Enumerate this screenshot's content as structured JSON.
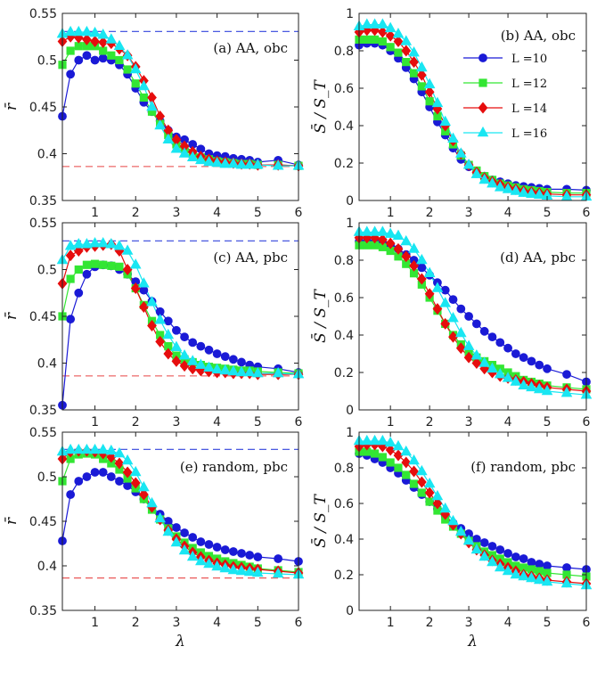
{
  "legend": {
    "entries": [
      {
        "label": "L =10",
        "color": "#1a1ad6",
        "marker": "circle"
      },
      {
        "label": "L =12",
        "color": "#33e633",
        "marker": "square"
      },
      {
        "label": "L =14",
        "color": "#e60d0d",
        "marker": "diamond"
      },
      {
        "label": "L =16",
        "color": "#19e6f2",
        "marker": "triangle"
      }
    ]
  },
  "chart_data": [
    {
      "type": "line",
      "panel_label": "(a) AA, obc",
      "xlabel": "",
      "ylabel": "r̄",
      "xlim": [
        0.2,
        6
      ],
      "ylim": [
        0.35,
        0.55
      ],
      "xticks": [
        "1",
        "2",
        "3",
        "4",
        "5",
        "6"
      ],
      "yticks": [
        "0.35",
        "0.4",
        "0.45",
        "0.5",
        "0.55"
      ],
      "reference_lines": [
        {
          "y": 0.5307,
          "color": "#3344dd"
        },
        {
          "y": 0.3863,
          "color": "#e84444"
        }
      ],
      "x": [
        0.2,
        0.4,
        0.6,
        0.8,
        1.0,
        1.2,
        1.4,
        1.6,
        1.8,
        2.0,
        2.2,
        2.4,
        2.6,
        2.8,
        3.0,
        3.2,
        3.4,
        3.6,
        3.8,
        4.0,
        4.2,
        4.4,
        4.6,
        4.8,
        5.0,
        5.5,
        6.0
      ],
      "series": [
        {
          "name": "L =10",
          "values": [
            0.44,
            0.485,
            0.5,
            0.505,
            0.5,
            0.502,
            0.5,
            0.495,
            0.485,
            0.47,
            0.455,
            0.445,
            0.435,
            0.425,
            0.418,
            0.415,
            0.41,
            0.405,
            0.4,
            0.398,
            0.397,
            0.395,
            0.394,
            0.393,
            0.391,
            0.393,
            0.388
          ]
        },
        {
          "name": "L =12",
          "values": [
            0.495,
            0.51,
            0.515,
            0.515,
            0.515,
            0.51,
            0.505,
            0.5,
            0.49,
            0.475,
            0.46,
            0.445,
            0.432,
            0.42,
            0.41,
            0.405,
            0.4,
            0.396,
            0.394,
            0.392,
            0.391,
            0.39,
            0.389,
            0.389,
            0.388,
            0.388,
            0.387
          ]
        },
        {
          "name": "L =14",
          "values": [
            0.52,
            0.525,
            0.524,
            0.522,
            0.52,
            0.519,
            0.518,
            0.512,
            0.505,
            0.493,
            0.478,
            0.46,
            0.44,
            0.425,
            0.415,
            0.408,
            0.402,
            0.397,
            0.394,
            0.392,
            0.391,
            0.39,
            0.389,
            0.389,
            0.388,
            0.388,
            0.387
          ]
        },
        {
          "name": "L =16",
          "values": [
            0.528,
            0.53,
            0.53,
            0.53,
            0.529,
            0.527,
            0.522,
            0.515,
            0.505,
            0.49,
            0.472,
            0.45,
            0.43,
            0.415,
            0.405,
            0.4,
            0.396,
            0.393,
            0.391,
            0.39,
            0.389,
            0.389,
            0.388,
            0.388,
            0.388,
            0.387,
            0.387
          ]
        }
      ]
    },
    {
      "type": "line",
      "panel_label": "(b) AA, obc",
      "xlabel": "",
      "ylabel": "S̄ / S_T",
      "xlim": [
        0.2,
        6
      ],
      "ylim": [
        0,
        1
      ],
      "xticks": [
        "1",
        "2",
        "3",
        "4",
        "5",
        "6"
      ],
      "yticks": [
        "0",
        "0.2",
        "0.4",
        "0.6",
        "0.8",
        "1"
      ],
      "legend_position": "top-right",
      "x": [
        0.2,
        0.4,
        0.6,
        0.8,
        1.0,
        1.2,
        1.4,
        1.6,
        1.8,
        2.0,
        2.2,
        2.4,
        2.6,
        2.8,
        3.0,
        3.2,
        3.4,
        3.6,
        3.8,
        4.0,
        4.2,
        4.4,
        4.6,
        4.8,
        5.0,
        5.5,
        6.0
      ],
      "series": [
        {
          "name": "L =10",
          "values": [
            0.83,
            0.84,
            0.84,
            0.83,
            0.8,
            0.76,
            0.71,
            0.65,
            0.58,
            0.5,
            0.42,
            0.35,
            0.28,
            0.22,
            0.18,
            0.15,
            0.13,
            0.11,
            0.1,
            0.09,
            0.08,
            0.075,
            0.07,
            0.065,
            0.06,
            0.06,
            0.055
          ]
        },
        {
          "name": "L =12",
          "values": [
            0.86,
            0.86,
            0.86,
            0.85,
            0.82,
            0.79,
            0.74,
            0.68,
            0.61,
            0.53,
            0.45,
            0.37,
            0.3,
            0.24,
            0.19,
            0.16,
            0.13,
            0.11,
            0.09,
            0.08,
            0.07,
            0.06,
            0.055,
            0.05,
            0.045,
            0.04,
            0.04
          ]
        },
        {
          "name": "L =14",
          "values": [
            0.9,
            0.91,
            0.91,
            0.9,
            0.88,
            0.85,
            0.8,
            0.74,
            0.67,
            0.58,
            0.49,
            0.4,
            0.32,
            0.25,
            0.19,
            0.15,
            0.12,
            0.1,
            0.085,
            0.07,
            0.06,
            0.05,
            0.045,
            0.04,
            0.035,
            0.03,
            0.03
          ]
        },
        {
          "name": "L =16",
          "values": [
            0.93,
            0.94,
            0.94,
            0.94,
            0.92,
            0.89,
            0.85,
            0.79,
            0.71,
            0.62,
            0.52,
            0.42,
            0.33,
            0.25,
            0.19,
            0.14,
            0.11,
            0.09,
            0.07,
            0.06,
            0.05,
            0.04,
            0.035,
            0.03,
            0.025,
            0.02,
            0.02
          ]
        }
      ]
    },
    {
      "type": "line",
      "panel_label": "(c) AA, pbc",
      "xlabel": "",
      "ylabel": "r̄",
      "xlim": [
        0.2,
        6
      ],
      "ylim": [
        0.35,
        0.55
      ],
      "xticks": [
        "1",
        "2",
        "3",
        "4",
        "5",
        "6"
      ],
      "yticks": [
        "0.35",
        "0.4",
        "0.45",
        "0.5",
        "0.55"
      ],
      "reference_lines": [
        {
          "y": 0.5307,
          "color": "#3344dd"
        },
        {
          "y": 0.3863,
          "color": "#e84444"
        }
      ],
      "x": [
        0.2,
        0.4,
        0.6,
        0.8,
        1.0,
        1.2,
        1.4,
        1.6,
        1.8,
        2.0,
        2.2,
        2.4,
        2.6,
        2.8,
        3.0,
        3.2,
        3.4,
        3.6,
        3.8,
        4.0,
        4.2,
        4.4,
        4.6,
        4.8,
        5.0,
        5.5,
        6.0
      ],
      "series": [
        {
          "name": "L =10",
          "values": [
            0.355,
            0.447,
            0.475,
            0.495,
            0.503,
            0.505,
            0.504,
            0.5,
            0.495,
            0.487,
            0.478,
            0.466,
            0.455,
            0.445,
            0.435,
            0.428,
            0.422,
            0.418,
            0.414,
            0.41,
            0.407,
            0.404,
            0.401,
            0.398,
            0.396,
            0.394,
            0.39
          ]
        },
        {
          "name": "L =12",
          "values": [
            0.45,
            0.49,
            0.5,
            0.505,
            0.506,
            0.505,
            0.504,
            0.503,
            0.495,
            0.48,
            0.462,
            0.445,
            0.43,
            0.418,
            0.408,
            0.404,
            0.401,
            0.398,
            0.396,
            0.395,
            0.394,
            0.393,
            0.392,
            0.392,
            0.391,
            0.39,
            0.389
          ]
        },
        {
          "name": "L =14",
          "values": [
            0.485,
            0.515,
            0.52,
            0.524,
            0.525,
            0.526,
            0.527,
            0.52,
            0.5,
            0.48,
            0.46,
            0.44,
            0.423,
            0.41,
            0.402,
            0.397,
            0.394,
            0.392,
            0.391,
            0.39,
            0.39,
            0.389,
            0.389,
            0.389,
            0.388,
            0.388,
            0.388
          ]
        },
        {
          "name": "L =16",
          "values": [
            0.51,
            0.525,
            0.527,
            0.527,
            0.528,
            0.528,
            0.527,
            0.525,
            0.52,
            0.505,
            0.485,
            0.465,
            0.446,
            0.43,
            0.417,
            0.408,
            0.402,
            0.398,
            0.395,
            0.393,
            0.392,
            0.391,
            0.39,
            0.39,
            0.389,
            0.389,
            0.388
          ]
        }
      ]
    },
    {
      "type": "line",
      "panel_label": "(d) AA, pbc",
      "xlabel": "",
      "ylabel": "S̄ / S_T",
      "xlim": [
        0.2,
        6
      ],
      "ylim": [
        0,
        1
      ],
      "xticks": [
        "1",
        "2",
        "3",
        "4",
        "5",
        "6"
      ],
      "yticks": [
        "0",
        "0.2",
        "0.4",
        "0.6",
        "0.8",
        "1"
      ],
      "x": [
        0.2,
        0.4,
        0.6,
        0.8,
        1.0,
        1.2,
        1.4,
        1.6,
        1.8,
        2.0,
        2.2,
        2.4,
        2.6,
        2.8,
        3.0,
        3.2,
        3.4,
        3.6,
        3.8,
        4.0,
        4.2,
        4.4,
        4.6,
        4.8,
        5.0,
        5.5,
        6.0
      ],
      "series": [
        {
          "name": "L =10",
          "values": [
            0.9,
            0.9,
            0.9,
            0.89,
            0.88,
            0.86,
            0.83,
            0.8,
            0.76,
            0.72,
            0.68,
            0.64,
            0.59,
            0.54,
            0.5,
            0.46,
            0.42,
            0.39,
            0.36,
            0.33,
            0.3,
            0.28,
            0.26,
            0.24,
            0.22,
            0.19,
            0.15
          ]
        },
        {
          "name": "L =12",
          "values": [
            0.88,
            0.88,
            0.88,
            0.87,
            0.85,
            0.82,
            0.78,
            0.73,
            0.67,
            0.6,
            0.53,
            0.46,
            0.4,
            0.35,
            0.31,
            0.28,
            0.26,
            0.24,
            0.22,
            0.2,
            0.18,
            0.16,
            0.15,
            0.14,
            0.13,
            0.12,
            0.11
          ]
        },
        {
          "name": "L =14",
          "values": [
            0.92,
            0.92,
            0.92,
            0.91,
            0.89,
            0.86,
            0.82,
            0.77,
            0.7,
            0.62,
            0.54,
            0.46,
            0.39,
            0.33,
            0.28,
            0.25,
            0.22,
            0.2,
            0.18,
            0.17,
            0.16,
            0.15,
            0.14,
            0.13,
            0.12,
            0.11,
            0.1
          ]
        },
        {
          "name": "L =16",
          "values": [
            0.95,
            0.95,
            0.95,
            0.95,
            0.94,
            0.93,
            0.9,
            0.86,
            0.8,
            0.73,
            0.65,
            0.57,
            0.49,
            0.41,
            0.34,
            0.29,
            0.25,
            0.22,
            0.19,
            0.17,
            0.15,
            0.13,
            0.12,
            0.11,
            0.1,
            0.09,
            0.08
          ]
        }
      ]
    },
    {
      "type": "line",
      "panel_label": "(e) random, pbc",
      "xlabel": "λ",
      "ylabel": "r̄",
      "xlim": [
        0.2,
        6
      ],
      "ylim": [
        0.35,
        0.55
      ],
      "xticks": [
        "1",
        "2",
        "3",
        "4",
        "5",
        "6"
      ],
      "yticks": [
        "0.35",
        "0.4",
        "0.45",
        "0.5",
        "0.55"
      ],
      "reference_lines": [
        {
          "y": 0.5307,
          "color": "#3344dd"
        },
        {
          "y": 0.3863,
          "color": "#e84444"
        }
      ],
      "x": [
        0.2,
        0.4,
        0.6,
        0.8,
        1.0,
        1.2,
        1.4,
        1.6,
        1.8,
        2.0,
        2.2,
        2.4,
        2.6,
        2.8,
        3.0,
        3.2,
        3.4,
        3.6,
        3.8,
        4.0,
        4.2,
        4.4,
        4.6,
        4.8,
        5.0,
        5.5,
        6.0
      ],
      "series": [
        {
          "name": "L =10",
          "values": [
            0.428,
            0.48,
            0.495,
            0.5,
            0.505,
            0.505,
            0.5,
            0.495,
            0.49,
            0.483,
            0.475,
            0.466,
            0.458,
            0.45,
            0.443,
            0.437,
            0.432,
            0.427,
            0.424,
            0.421,
            0.418,
            0.416,
            0.414,
            0.412,
            0.41,
            0.408,
            0.405
          ]
        },
        {
          "name": "L =12",
          "values": [
            0.495,
            0.52,
            0.525,
            0.526,
            0.525,
            0.52,
            0.515,
            0.508,
            0.498,
            0.487,
            0.475,
            0.463,
            0.452,
            0.442,
            0.433,
            0.426,
            0.42,
            0.415,
            0.411,
            0.408,
            0.405,
            0.403,
            0.401,
            0.399,
            0.397,
            0.395,
            0.393
          ]
        },
        {
          "name": "L =14",
          "values": [
            0.52,
            0.528,
            0.529,
            0.529,
            0.528,
            0.526,
            0.522,
            0.515,
            0.505,
            0.493,
            0.48,
            0.466,
            0.452,
            0.44,
            0.43,
            0.422,
            0.415,
            0.41,
            0.406,
            0.403,
            0.401,
            0.399,
            0.398,
            0.397,
            0.396,
            0.394,
            0.392
          ]
        },
        {
          "name": "L =16",
          "values": [
            0.528,
            0.53,
            0.53,
            0.53,
            0.53,
            0.53,
            0.529,
            0.526,
            0.518,
            0.505,
            0.488,
            0.47,
            0.453,
            0.438,
            0.426,
            0.417,
            0.41,
            0.405,
            0.402,
            0.399,
            0.397,
            0.395,
            0.394,
            0.393,
            0.392,
            0.391,
            0.39
          ]
        }
      ]
    },
    {
      "type": "line",
      "panel_label": "(f) random, pbc",
      "xlabel": "λ",
      "ylabel": "S̄ / S_T",
      "xlim": [
        0.2,
        6
      ],
      "ylim": [
        0,
        1
      ],
      "xticks": [
        "1",
        "2",
        "3",
        "4",
        "5",
        "6"
      ],
      "yticks": [
        "0",
        "0.2",
        "0.4",
        "0.6",
        "0.8",
        "1"
      ],
      "x": [
        0.2,
        0.4,
        0.6,
        0.8,
        1.0,
        1.2,
        1.4,
        1.6,
        1.8,
        2.0,
        2.2,
        2.4,
        2.6,
        2.8,
        3.0,
        3.2,
        3.4,
        3.6,
        3.8,
        4.0,
        4.2,
        4.4,
        4.6,
        4.8,
        5.0,
        5.5,
        6.0
      ],
      "series": [
        {
          "name": "L =10",
          "values": [
            0.88,
            0.87,
            0.85,
            0.83,
            0.8,
            0.77,
            0.73,
            0.69,
            0.65,
            0.61,
            0.57,
            0.53,
            0.49,
            0.46,
            0.43,
            0.4,
            0.38,
            0.36,
            0.34,
            0.32,
            0.3,
            0.29,
            0.27,
            0.26,
            0.25,
            0.24,
            0.23
          ]
        },
        {
          "name": "L =12",
          "values": [
            0.89,
            0.89,
            0.88,
            0.86,
            0.83,
            0.8,
            0.76,
            0.71,
            0.66,
            0.61,
            0.56,
            0.51,
            0.47,
            0.43,
            0.39,
            0.36,
            0.33,
            0.31,
            0.29,
            0.27,
            0.25,
            0.24,
            0.23,
            0.22,
            0.21,
            0.2,
            0.19
          ]
        },
        {
          "name": "L =14",
          "values": [
            0.92,
            0.93,
            0.93,
            0.92,
            0.9,
            0.87,
            0.83,
            0.78,
            0.72,
            0.66,
            0.6,
            0.54,
            0.48,
            0.43,
            0.38,
            0.34,
            0.31,
            0.28,
            0.26,
            0.24,
            0.22,
            0.2,
            0.19,
            0.18,
            0.17,
            0.16,
            0.15
          ]
        },
        {
          "name": "L =16",
          "values": [
            0.95,
            0.95,
            0.95,
            0.95,
            0.94,
            0.92,
            0.89,
            0.84,
            0.78,
            0.71,
            0.64,
            0.57,
            0.5,
            0.44,
            0.39,
            0.34,
            0.3,
            0.27,
            0.24,
            0.22,
            0.2,
            0.19,
            0.18,
            0.17,
            0.16,
            0.15,
            0.14
          ]
        }
      ]
    }
  ]
}
